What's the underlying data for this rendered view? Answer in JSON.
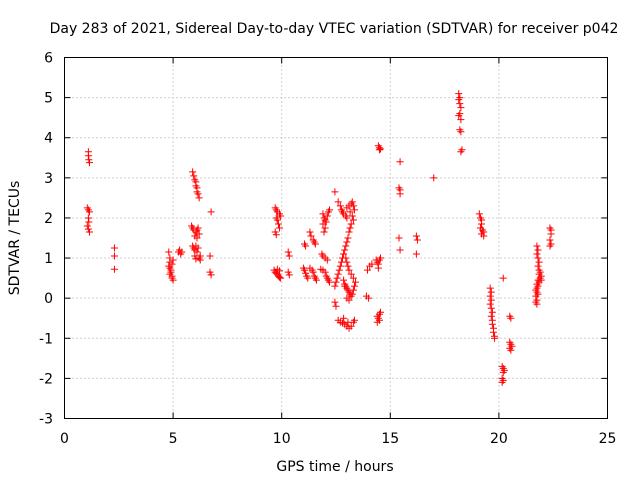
{
  "chart_data": {
    "type": "scatter",
    "title": "Day 283 of 2021, Sidereal Day-to-day VTEC variation (SDTVAR) for receiver p042",
    "xlabel": "GPS time / hours",
    "ylabel": "SDTVAR / TECUs",
    "xlim": [
      0,
      25
    ],
    "ylim": [
      -3,
      6
    ],
    "x_ticks": [
      0,
      5,
      10,
      15,
      20,
      25
    ],
    "y_ticks": [
      -3,
      -2,
      -1,
      0,
      1,
      2,
      3,
      4,
      5,
      6
    ],
    "x_tick_labels": [
      "0",
      "5",
      "10",
      "15",
      "20",
      "25"
    ],
    "y_tick_labels": [
      "-3",
      "-2",
      "-1",
      "0",
      "1",
      "2",
      "3",
      "4",
      "5",
      "6"
    ],
    "grid": true,
    "marker": "+",
    "color": "#ff0000",
    "series": [
      {
        "name": "SDTVAR",
        "points": [
          [
            1.1,
            3.65
          ],
          [
            1.1,
            3.55
          ],
          [
            1.12,
            3.45
          ],
          [
            1.15,
            3.38
          ],
          [
            1.05,
            2.25
          ],
          [
            1.1,
            2.2
          ],
          [
            1.15,
            2.15
          ],
          [
            1.1,
            2.0
          ],
          [
            1.12,
            1.9
          ],
          [
            1.05,
            1.8
          ],
          [
            1.1,
            1.72
          ],
          [
            1.15,
            1.65
          ],
          [
            2.3,
            1.25
          ],
          [
            2.3,
            1.05
          ],
          [
            2.3,
            0.72
          ],
          [
            4.8,
            1.15
          ],
          [
            4.85,
            1.0
          ],
          [
            4.85,
            0.9
          ],
          [
            4.8,
            0.8
          ],
          [
            4.85,
            0.75
          ],
          [
            4.9,
            0.7
          ],
          [
            4.9,
            0.65
          ],
          [
            4.85,
            0.6
          ],
          [
            4.95,
            0.55
          ],
          [
            4.95,
            0.5
          ],
          [
            5.0,
            0.45
          ],
          [
            4.95,
            0.85
          ],
          [
            5.0,
            0.95
          ],
          [
            5.25,
            1.15
          ],
          [
            5.3,
            1.2
          ],
          [
            5.4,
            1.15
          ],
          [
            5.35,
            1.1
          ],
          [
            5.9,
            3.15
          ],
          [
            5.95,
            3.05
          ],
          [
            6.0,
            2.95
          ],
          [
            6.05,
            2.9
          ],
          [
            6.05,
            2.8
          ],
          [
            6.1,
            2.75
          ],
          [
            6.1,
            2.65
          ],
          [
            6.15,
            2.6
          ],
          [
            6.2,
            2.5
          ],
          [
            5.85,
            1.8
          ],
          [
            5.9,
            1.75
          ],
          [
            5.95,
            1.7
          ],
          [
            6.05,
            1.65
          ],
          [
            6.1,
            1.7
          ],
          [
            6.15,
            1.75
          ],
          [
            6.2,
            1.6
          ],
          [
            6.0,
            1.55
          ],
          [
            6.1,
            1.5
          ],
          [
            5.9,
            1.3
          ],
          [
            5.95,
            1.25
          ],
          [
            6.0,
            1.2
          ],
          [
            6.05,
            1.3
          ],
          [
            6.15,
            1.25
          ],
          [
            6.1,
            1.15
          ],
          [
            6.0,
            1.05
          ],
          [
            6.05,
            0.98
          ],
          [
            6.2,
            1.0
          ],
          [
            6.25,
            1.05
          ],
          [
            6.25,
            0.95
          ],
          [
            6.75,
            2.15
          ],
          [
            6.7,
            1.05
          ],
          [
            6.7,
            0.65
          ],
          [
            6.75,
            0.58
          ],
          [
            9.7,
            2.25
          ],
          [
            9.75,
            2.2
          ],
          [
            9.8,
            2.15
          ],
          [
            9.9,
            2.1
          ],
          [
            9.95,
            2.05
          ],
          [
            9.75,
            2.0
          ],
          [
            9.8,
            1.95
          ],
          [
            9.85,
            1.85
          ],
          [
            9.9,
            1.75
          ],
          [
            9.7,
            1.65
          ],
          [
            9.75,
            1.58
          ],
          [
            9.65,
            0.7
          ],
          [
            9.7,
            0.65
          ],
          [
            9.75,
            0.62
          ],
          [
            9.8,
            0.6
          ],
          [
            9.85,
            0.55
          ],
          [
            9.9,
            0.52
          ],
          [
            9.95,
            0.5
          ],
          [
            9.8,
            0.72
          ],
          [
            9.9,
            0.68
          ],
          [
            10.3,
            1.15
          ],
          [
            10.35,
            1.05
          ],
          [
            10.3,
            0.65
          ],
          [
            10.35,
            0.58
          ],
          [
            11.05,
            1.35
          ],
          [
            11.1,
            1.3
          ],
          [
            11.0,
            0.75
          ],
          [
            11.05,
            0.7
          ],
          [
            11.1,
            0.62
          ],
          [
            11.15,
            0.55
          ],
          [
            11.2,
            0.5
          ],
          [
            11.3,
            1.65
          ],
          [
            11.35,
            1.55
          ],
          [
            11.45,
            1.45
          ],
          [
            11.5,
            1.4
          ],
          [
            11.55,
            1.35
          ],
          [
            11.3,
            0.75
          ],
          [
            11.4,
            0.7
          ],
          [
            11.45,
            0.65
          ],
          [
            11.5,
            0.55
          ],
          [
            11.55,
            0.5
          ],
          [
            11.6,
            0.45
          ],
          [
            11.9,
            2.1
          ],
          [
            11.95,
            2.0
          ],
          [
            12.0,
            1.95
          ],
          [
            12.05,
            1.9
          ],
          [
            12.1,
            2.05
          ],
          [
            12.15,
            2.15
          ],
          [
            12.2,
            2.2
          ],
          [
            11.9,
            1.85
          ],
          [
            12.0,
            1.75
          ],
          [
            11.95,
            1.65
          ],
          [
            11.85,
            1.1
          ],
          [
            11.9,
            1.05
          ],
          [
            12.0,
            1.0
          ],
          [
            12.1,
            0.95
          ],
          [
            11.8,
            0.72
          ],
          [
            11.9,
            0.7
          ],
          [
            12.0,
            0.65
          ],
          [
            12.05,
            0.55
          ],
          [
            12.1,
            0.5
          ],
          [
            12.15,
            0.45
          ],
          [
            12.2,
            0.4
          ],
          [
            12.45,
            2.65
          ],
          [
            12.6,
            2.4
          ],
          [
            12.7,
            2.3
          ],
          [
            12.75,
            2.2
          ],
          [
            12.85,
            2.1
          ],
          [
            12.95,
            2.05
          ],
          [
            13.0,
            2.0
          ],
          [
            12.8,
            2.15
          ],
          [
            13.0,
            2.25
          ],
          [
            13.1,
            2.3
          ],
          [
            13.2,
            2.35
          ],
          [
            13.25,
            2.4
          ],
          [
            13.3,
            2.3
          ],
          [
            13.15,
            2.15
          ],
          [
            13.25,
            2.05
          ],
          [
            13.35,
            2.2
          ],
          [
            13.3,
            1.95
          ],
          [
            13.2,
            1.85
          ],
          [
            13.15,
            1.75
          ],
          [
            13.1,
            1.65
          ],
          [
            13.05,
            1.5
          ],
          [
            13.0,
            1.4
          ],
          [
            12.95,
            1.3
          ],
          [
            12.9,
            1.2
          ],
          [
            12.85,
            1.1
          ],
          [
            12.8,
            1.0
          ],
          [
            12.75,
            0.9
          ],
          [
            12.7,
            0.8
          ],
          [
            12.65,
            0.7
          ],
          [
            12.6,
            0.6
          ],
          [
            12.55,
            0.5
          ],
          [
            12.5,
            0.4
          ],
          [
            12.45,
            0.3
          ],
          [
            12.85,
            0.45
          ],
          [
            12.9,
            0.35
          ],
          [
            12.95,
            0.3
          ],
          [
            13.0,
            0.25
          ],
          [
            13.05,
            0.2
          ],
          [
            13.1,
            0.15
          ],
          [
            13.15,
            0.1
          ],
          [
            13.2,
            0.05
          ],
          [
            13.25,
            0.1
          ],
          [
            13.3,
            0.2
          ],
          [
            13.35,
            0.3
          ],
          [
            13.4,
            0.4
          ],
          [
            13.3,
            0.5
          ],
          [
            13.2,
            0.6
          ],
          [
            13.1,
            0.7
          ],
          [
            13.05,
            0.8
          ],
          [
            13.0,
            0.9
          ],
          [
            12.95,
            1.0
          ],
          [
            12.9,
            0.3
          ],
          [
            13.0,
            0.0
          ],
          [
            13.1,
            -0.05
          ],
          [
            12.45,
            -0.1
          ],
          [
            12.5,
            -0.2
          ],
          [
            12.6,
            -0.55
          ],
          [
            12.7,
            -0.6
          ],
          [
            12.8,
            -0.62
          ],
          [
            12.9,
            -0.65
          ],
          [
            13.0,
            -0.7
          ],
          [
            13.1,
            -0.75
          ],
          [
            13.2,
            -0.7
          ],
          [
            13.3,
            -0.6
          ],
          [
            13.35,
            -0.55
          ],
          [
            12.85,
            -0.5
          ],
          [
            13.05,
            -0.6
          ],
          [
            13.9,
            0.05
          ],
          [
            14.0,
            0.0
          ],
          [
            13.95,
            0.7
          ],
          [
            14.05,
            0.8
          ],
          [
            14.15,
            0.85
          ],
          [
            14.45,
            3.8
          ],
          [
            14.5,
            3.75
          ],
          [
            14.55,
            3.72
          ],
          [
            14.5,
            3.7
          ],
          [
            14.35,
            0.95
          ],
          [
            14.4,
            0.9
          ],
          [
            14.45,
            0.85
          ],
          [
            14.5,
            0.95
          ],
          [
            14.55,
            1.0
          ],
          [
            14.45,
            0.75
          ],
          [
            14.4,
            -0.45
          ],
          [
            14.45,
            -0.5
          ],
          [
            14.5,
            -0.55
          ],
          [
            14.5,
            -0.4
          ],
          [
            14.55,
            -0.35
          ],
          [
            14.4,
            -0.6
          ],
          [
            15.45,
            3.4
          ],
          [
            15.4,
            2.75
          ],
          [
            15.45,
            2.7
          ],
          [
            15.45,
            2.6
          ],
          [
            15.4,
            1.5
          ],
          [
            15.45,
            1.2
          ],
          [
            16.2,
            1.55
          ],
          [
            16.25,
            1.45
          ],
          [
            16.2,
            1.1
          ],
          [
            17.0,
            3.0
          ],
          [
            18.15,
            5.1
          ],
          [
            18.2,
            5.0
          ],
          [
            18.15,
            4.95
          ],
          [
            18.2,
            4.85
          ],
          [
            18.25,
            4.75
          ],
          [
            18.2,
            4.6
          ],
          [
            18.15,
            4.55
          ],
          [
            18.25,
            4.45
          ],
          [
            18.2,
            4.2
          ],
          [
            18.25,
            4.15
          ],
          [
            18.3,
            3.7
          ],
          [
            18.25,
            3.65
          ],
          [
            19.1,
            2.1
          ],
          [
            19.15,
            2.0
          ],
          [
            19.2,
            1.95
          ],
          [
            19.2,
            1.85
          ],
          [
            19.15,
            1.75
          ],
          [
            19.25,
            1.7
          ],
          [
            19.2,
            1.6
          ],
          [
            19.3,
            1.55
          ],
          [
            19.3,
            1.65
          ],
          [
            19.6,
            0.25
          ],
          [
            19.65,
            0.15
          ],
          [
            19.6,
            0.05
          ],
          [
            19.65,
            -0.05
          ],
          [
            19.6,
            -0.15
          ],
          [
            19.65,
            -0.25
          ],
          [
            19.7,
            -0.35
          ],
          [
            19.65,
            -0.45
          ],
          [
            19.7,
            -0.55
          ],
          [
            19.7,
            -0.65
          ],
          [
            19.75,
            -0.75
          ],
          [
            19.75,
            -0.85
          ],
          [
            19.8,
            -0.95
          ],
          [
            19.8,
            -1.0
          ],
          [
            20.2,
            0.5
          ],
          [
            20.15,
            -1.7
          ],
          [
            20.2,
            -1.75
          ],
          [
            20.2,
            -1.85
          ],
          [
            20.25,
            -1.8
          ],
          [
            20.15,
            -2.0
          ],
          [
            20.2,
            -2.05
          ],
          [
            20.15,
            -2.1
          ],
          [
            20.5,
            -0.45
          ],
          [
            20.55,
            -0.5
          ],
          [
            20.5,
            -1.1
          ],
          [
            20.55,
            -1.15
          ],
          [
            20.6,
            -1.2
          ],
          [
            20.5,
            -1.25
          ],
          [
            20.55,
            -1.3
          ],
          [
            21.75,
            1.3
          ],
          [
            21.8,
            1.2
          ],
          [
            21.75,
            1.1
          ],
          [
            21.8,
            1.0
          ],
          [
            21.85,
            0.9
          ],
          [
            21.8,
            0.8
          ],
          [
            21.85,
            0.7
          ],
          [
            21.9,
            0.65
          ],
          [
            21.85,
            0.6
          ],
          [
            21.9,
            0.5
          ],
          [
            21.8,
            0.45
          ],
          [
            21.85,
            0.4
          ],
          [
            21.75,
            0.35
          ],
          [
            21.8,
            0.3
          ],
          [
            21.75,
            0.25
          ],
          [
            21.7,
            0.2
          ],
          [
            21.75,
            0.15
          ],
          [
            21.7,
            0.05
          ],
          [
            21.75,
            -0.05
          ],
          [
            21.7,
            -0.1
          ],
          [
            21.75,
            -0.15
          ],
          [
            21.8,
            0.1
          ],
          [
            21.95,
            0.55
          ],
          [
            21.95,
            0.45
          ],
          [
            22.35,
            1.75
          ],
          [
            22.4,
            1.7
          ],
          [
            22.4,
            1.6
          ],
          [
            22.35,
            1.45
          ],
          [
            22.4,
            1.35
          ],
          [
            22.35,
            1.3
          ]
        ]
      }
    ]
  }
}
